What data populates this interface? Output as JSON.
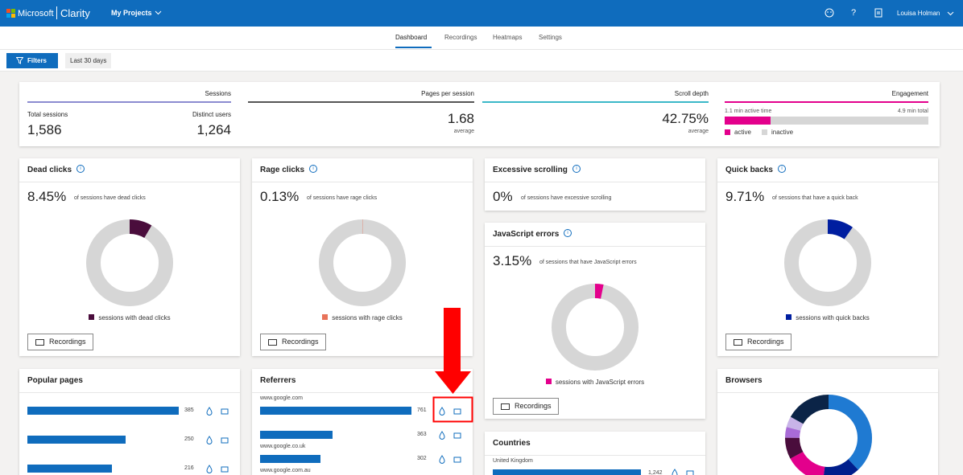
{
  "header": {
    "brand": "Microsoft",
    "product": "Clarity",
    "project": "My Projects",
    "user": "Louisa Holman"
  },
  "tabs": [
    "Dashboard",
    "Recordings",
    "Heatmaps",
    "Settings"
  ],
  "toolbar": {
    "filters": "Filters",
    "range": "Last 30 days"
  },
  "summary": {
    "sessions": {
      "title": "Sessions",
      "total_label": "Total sessions",
      "total": "1,586",
      "distinct_label": "Distinct users",
      "distinct": "1,264"
    },
    "pages": {
      "title": "Pages per session",
      "value": "1.68",
      "sub": "average"
    },
    "scroll": {
      "title": "Scroll depth",
      "value": "42.75%",
      "sub": "average"
    },
    "engagement": {
      "title": "Engagement",
      "active_label": "1.1 min active time",
      "total_label": "4.9 min total",
      "active": 1.1,
      "total": 4.9,
      "legend": [
        "active",
        "inactive"
      ],
      "colors": [
        "#e3008c",
        "#d6d6d6"
      ]
    }
  },
  "metrics": [
    {
      "title": "Dead clicks",
      "value": {
        "value": 8.45,
        "label": "8.45%"
      },
      "description": "of sessions have dead clicks",
      "legend": "sessions with dead clicks",
      "color": "#4a0d3c",
      "button": "Recordings"
    },
    {
      "title": "Rage clicks",
      "value": {
        "value": 0.13,
        "label": "0.13%"
      },
      "description": "of sessions have rage clicks",
      "legend": "sessions with rage clicks",
      "color": "#e8735a",
      "button": "Recordings"
    },
    {
      "title": "Excessive scrolling",
      "value": {
        "value": 0,
        "label": "0%"
      },
      "description": "of sessions have excessive scrolling"
    },
    {
      "title": "JavaScript errors",
      "value": {
        "value": 3.15,
        "label": "3.15%"
      },
      "description": "of sessions that have JavaScript errors",
      "legend": "sessions with JavaScript errors",
      "color": "#e3008c",
      "button": "Recordings"
    },
    {
      "title": "Quick backs",
      "value": {
        "value": 9.71,
        "label": "9.71%"
      },
      "description": "of sessions that have a quick back",
      "legend": "sessions with quick backs",
      "color": "#001ea0",
      "button": "Recordings"
    }
  ],
  "popular_pages": {
    "title": "Popular pages",
    "values": [
      385,
      250,
      216
    ]
  },
  "referrers": {
    "title": "Referrers",
    "rows": [
      {
        "name": "www.google.com",
        "value": 761
      },
      {
        "name": null,
        "value": 363
      },
      {
        "name": "www.google.co.uk",
        "value": 302
      },
      {
        "name": "www.google.com.au"
      }
    ]
  },
  "countries": {
    "title": "Countries",
    "rows": [
      {
        "name": "United Kingdom",
        "value": {
          "value": 1242,
          "label": "1,242"
        }
      }
    ]
  },
  "browsers": {
    "title": "Browsers",
    "segments": [
      {
        "color": "#1f7ad2",
        "value": 38
      },
      {
        "color": "#001e8c",
        "value": 14
      },
      {
        "color": "#e3008c",
        "value": 15
      },
      {
        "color": "#4a0d3c",
        "value": 8
      },
      {
        "color": "#a86bd6",
        "value": 4
      },
      {
        "color": "#c8b4e8",
        "value": 4
      },
      {
        "color": "#0b2447",
        "value": 17
      }
    ]
  },
  "bar_color": "#0f6cbd"
}
